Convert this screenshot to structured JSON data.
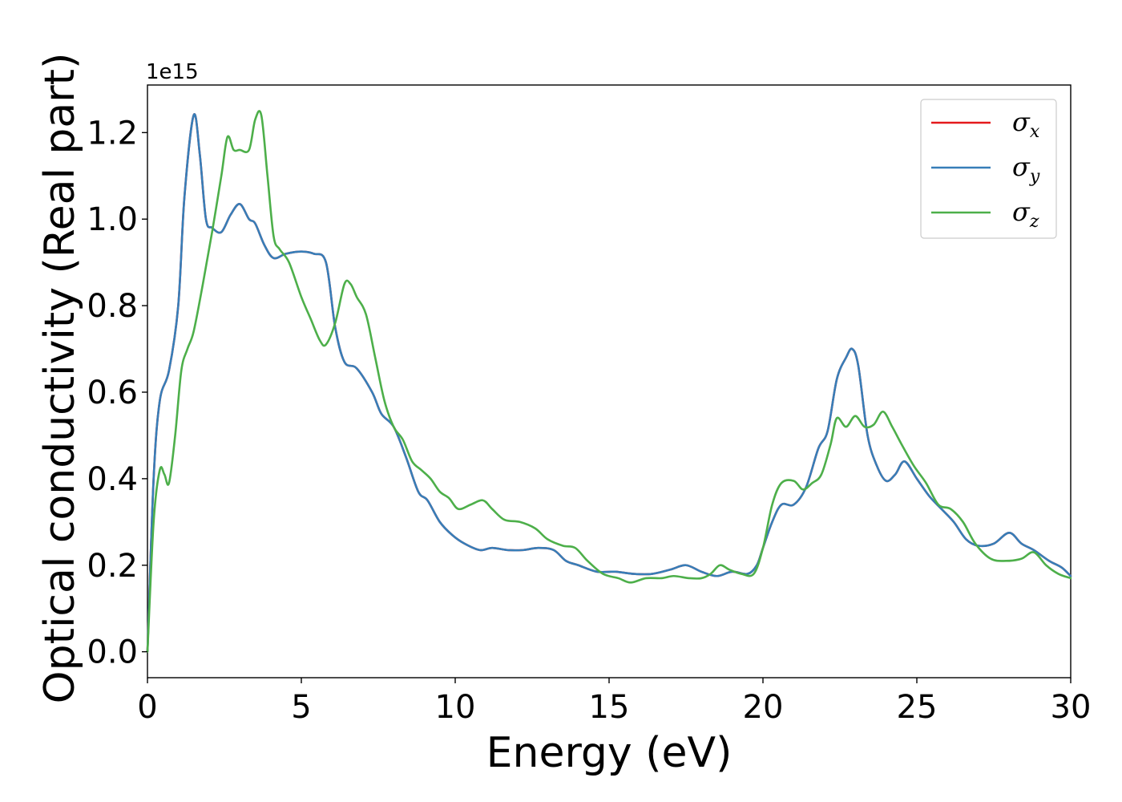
{
  "chart_data": {
    "type": "line",
    "xlabel": "Energy (eV)",
    "ylabel": "Optical conductivity (Real part)",
    "y_offset_label": "1e15",
    "xlim": [
      0,
      30
    ],
    "ylim": [
      -0.06,
      1.31
    ],
    "x_ticks": [
      0,
      5,
      10,
      15,
      20,
      25,
      30
    ],
    "x_tick_labels": [
      "0",
      "5",
      "10",
      "15",
      "20",
      "25",
      "30"
    ],
    "y_ticks": [
      0.0,
      0.2,
      0.4,
      0.6,
      0.8,
      1.0,
      1.2
    ],
    "y_tick_labels": [
      "0.0",
      "0.2",
      "0.4",
      "0.6",
      "0.8",
      "1.0",
      "1.2"
    ],
    "grid": false,
    "legend_position": "top-right",
    "series": [
      {
        "name": "σ_x",
        "legend_main": "σ",
        "legend_sub": "x",
        "color": "#e41a1c",
        "points": [
          [
            0,
            0.0
          ],
          [
            0.2,
            0.4
          ],
          [
            0.4,
            0.58
          ],
          [
            0.7,
            0.65
          ],
          [
            1.0,
            0.8
          ],
          [
            1.2,
            1.05
          ],
          [
            1.5,
            1.24
          ],
          [
            1.7,
            1.15
          ],
          [
            1.9,
            1.0
          ],
          [
            2.1,
            0.98
          ],
          [
            2.4,
            0.97
          ],
          [
            2.7,
            1.01
          ],
          [
            3.0,
            1.035
          ],
          [
            3.3,
            1.0
          ],
          [
            3.5,
            0.99
          ],
          [
            3.8,
            0.94
          ],
          [
            4.1,
            0.91
          ],
          [
            4.5,
            0.92
          ],
          [
            5.0,
            0.925
          ],
          [
            5.4,
            0.92
          ],
          [
            5.8,
            0.9
          ],
          [
            6.1,
            0.75
          ],
          [
            6.4,
            0.67
          ],
          [
            6.8,
            0.655
          ],
          [
            7.3,
            0.6
          ],
          [
            7.6,
            0.55
          ],
          [
            8.0,
            0.52
          ],
          [
            8.4,
            0.45
          ],
          [
            8.8,
            0.37
          ],
          [
            9.1,
            0.35
          ],
          [
            9.5,
            0.3
          ],
          [
            9.9,
            0.27
          ],
          [
            10.3,
            0.25
          ],
          [
            10.8,
            0.235
          ],
          [
            11.2,
            0.24
          ],
          [
            11.7,
            0.235
          ],
          [
            12.2,
            0.235
          ],
          [
            12.7,
            0.24
          ],
          [
            13.2,
            0.235
          ],
          [
            13.6,
            0.21
          ],
          [
            14.0,
            0.2
          ],
          [
            14.6,
            0.185
          ],
          [
            15.2,
            0.185
          ],
          [
            15.8,
            0.18
          ],
          [
            16.4,
            0.18
          ],
          [
            17.0,
            0.19
          ],
          [
            17.5,
            0.2
          ],
          [
            18.0,
            0.185
          ],
          [
            18.5,
            0.175
          ],
          [
            19.0,
            0.185
          ],
          [
            19.5,
            0.18
          ],
          [
            19.8,
            0.2
          ],
          [
            20.0,
            0.24
          ],
          [
            20.3,
            0.3
          ],
          [
            20.6,
            0.34
          ],
          [
            21.0,
            0.34
          ],
          [
            21.4,
            0.38
          ],
          [
            21.8,
            0.47
          ],
          [
            22.1,
            0.51
          ],
          [
            22.4,
            0.63
          ],
          [
            22.7,
            0.68
          ],
          [
            22.9,
            0.7
          ],
          [
            23.1,
            0.66
          ],
          [
            23.4,
            0.5
          ],
          [
            23.7,
            0.43
          ],
          [
            24.0,
            0.395
          ],
          [
            24.3,
            0.41
          ],
          [
            24.6,
            0.44
          ],
          [
            25.0,
            0.4
          ],
          [
            25.4,
            0.36
          ],
          [
            25.8,
            0.33
          ],
          [
            26.2,
            0.3
          ],
          [
            26.6,
            0.26
          ],
          [
            27.0,
            0.245
          ],
          [
            27.5,
            0.25
          ],
          [
            28.0,
            0.275
          ],
          [
            28.4,
            0.25
          ],
          [
            28.8,
            0.235
          ],
          [
            29.3,
            0.21
          ],
          [
            29.7,
            0.195
          ],
          [
            30.0,
            0.175
          ]
        ]
      },
      {
        "name": "σ_y",
        "legend_main": "σ",
        "legend_sub": "y",
        "color": "#377eb8",
        "points": [
          [
            0,
            0.0
          ],
          [
            0.2,
            0.4
          ],
          [
            0.4,
            0.58
          ],
          [
            0.7,
            0.65
          ],
          [
            1.0,
            0.8
          ],
          [
            1.2,
            1.05
          ],
          [
            1.5,
            1.24
          ],
          [
            1.7,
            1.15
          ],
          [
            1.9,
            1.0
          ],
          [
            2.1,
            0.98
          ],
          [
            2.4,
            0.97
          ],
          [
            2.7,
            1.01
          ],
          [
            3.0,
            1.035
          ],
          [
            3.3,
            1.0
          ],
          [
            3.5,
            0.99
          ],
          [
            3.8,
            0.94
          ],
          [
            4.1,
            0.91
          ],
          [
            4.5,
            0.92
          ],
          [
            5.0,
            0.925
          ],
          [
            5.4,
            0.92
          ],
          [
            5.8,
            0.9
          ],
          [
            6.1,
            0.75
          ],
          [
            6.4,
            0.67
          ],
          [
            6.8,
            0.655
          ],
          [
            7.3,
            0.6
          ],
          [
            7.6,
            0.55
          ],
          [
            8.0,
            0.52
          ],
          [
            8.4,
            0.45
          ],
          [
            8.8,
            0.37
          ],
          [
            9.1,
            0.35
          ],
          [
            9.5,
            0.3
          ],
          [
            9.9,
            0.27
          ],
          [
            10.3,
            0.25
          ],
          [
            10.8,
            0.235
          ],
          [
            11.2,
            0.24
          ],
          [
            11.7,
            0.235
          ],
          [
            12.2,
            0.235
          ],
          [
            12.7,
            0.24
          ],
          [
            13.2,
            0.235
          ],
          [
            13.6,
            0.21
          ],
          [
            14.0,
            0.2
          ],
          [
            14.6,
            0.185
          ],
          [
            15.2,
            0.185
          ],
          [
            15.8,
            0.18
          ],
          [
            16.4,
            0.18
          ],
          [
            17.0,
            0.19
          ],
          [
            17.5,
            0.2
          ],
          [
            18.0,
            0.185
          ],
          [
            18.5,
            0.175
          ],
          [
            19.0,
            0.185
          ],
          [
            19.5,
            0.18
          ],
          [
            19.8,
            0.2
          ],
          [
            20.0,
            0.24
          ],
          [
            20.3,
            0.3
          ],
          [
            20.6,
            0.34
          ],
          [
            21.0,
            0.34
          ],
          [
            21.4,
            0.38
          ],
          [
            21.8,
            0.47
          ],
          [
            22.1,
            0.51
          ],
          [
            22.4,
            0.63
          ],
          [
            22.7,
            0.68
          ],
          [
            22.9,
            0.7
          ],
          [
            23.1,
            0.66
          ],
          [
            23.4,
            0.5
          ],
          [
            23.7,
            0.43
          ],
          [
            24.0,
            0.395
          ],
          [
            24.3,
            0.41
          ],
          [
            24.6,
            0.44
          ],
          [
            25.0,
            0.4
          ],
          [
            25.4,
            0.36
          ],
          [
            25.8,
            0.33
          ],
          [
            26.2,
            0.3
          ],
          [
            26.6,
            0.26
          ],
          [
            27.0,
            0.245
          ],
          [
            27.5,
            0.25
          ],
          [
            28.0,
            0.275
          ],
          [
            28.4,
            0.25
          ],
          [
            28.8,
            0.235
          ],
          [
            29.3,
            0.21
          ],
          [
            29.7,
            0.195
          ],
          [
            30.0,
            0.175
          ]
        ]
      },
      {
        "name": "σ_z",
        "legend_main": "σ",
        "legend_sub": "z",
        "color": "#4daf4a",
        "points": [
          [
            0,
            0.0
          ],
          [
            0.2,
            0.3
          ],
          [
            0.4,
            0.42
          ],
          [
            0.55,
            0.41
          ],
          [
            0.7,
            0.39
          ],
          [
            0.9,
            0.5
          ],
          [
            1.1,
            0.65
          ],
          [
            1.3,
            0.7
          ],
          [
            1.5,
            0.74
          ],
          [
            1.8,
            0.85
          ],
          [
            2.1,
            0.97
          ],
          [
            2.4,
            1.1
          ],
          [
            2.6,
            1.19
          ],
          [
            2.8,
            1.16
          ],
          [
            3.0,
            1.16
          ],
          [
            3.3,
            1.16
          ],
          [
            3.5,
            1.23
          ],
          [
            3.7,
            1.24
          ],
          [
            3.9,
            1.1
          ],
          [
            4.1,
            0.96
          ],
          [
            4.3,
            0.93
          ],
          [
            4.6,
            0.9
          ],
          [
            5.0,
            0.82
          ],
          [
            5.3,
            0.77
          ],
          [
            5.6,
            0.72
          ],
          [
            5.8,
            0.71
          ],
          [
            6.1,
            0.76
          ],
          [
            6.4,
            0.85
          ],
          [
            6.6,
            0.85
          ],
          [
            6.8,
            0.82
          ],
          [
            7.1,
            0.78
          ],
          [
            7.4,
            0.68
          ],
          [
            7.7,
            0.58
          ],
          [
            8.0,
            0.52
          ],
          [
            8.3,
            0.49
          ],
          [
            8.6,
            0.44
          ],
          [
            8.9,
            0.42
          ],
          [
            9.2,
            0.4
          ],
          [
            9.5,
            0.37
          ],
          [
            9.8,
            0.355
          ],
          [
            10.1,
            0.33
          ],
          [
            10.5,
            0.34
          ],
          [
            10.9,
            0.35
          ],
          [
            11.2,
            0.33
          ],
          [
            11.6,
            0.305
          ],
          [
            12.1,
            0.3
          ],
          [
            12.6,
            0.285
          ],
          [
            13.0,
            0.26
          ],
          [
            13.5,
            0.245
          ],
          [
            13.9,
            0.24
          ],
          [
            14.3,
            0.21
          ],
          [
            14.8,
            0.18
          ],
          [
            15.3,
            0.17
          ],
          [
            15.7,
            0.16
          ],
          [
            16.2,
            0.17
          ],
          [
            16.7,
            0.17
          ],
          [
            17.1,
            0.175
          ],
          [
            17.6,
            0.17
          ],
          [
            18.0,
            0.17
          ],
          [
            18.3,
            0.18
          ],
          [
            18.6,
            0.2
          ],
          [
            18.9,
            0.19
          ],
          [
            19.3,
            0.18
          ],
          [
            19.7,
            0.18
          ],
          [
            20.0,
            0.24
          ],
          [
            20.3,
            0.34
          ],
          [
            20.6,
            0.39
          ],
          [
            21.0,
            0.395
          ],
          [
            21.3,
            0.375
          ],
          [
            21.6,
            0.39
          ],
          [
            21.9,
            0.41
          ],
          [
            22.2,
            0.48
          ],
          [
            22.4,
            0.54
          ],
          [
            22.7,
            0.52
          ],
          [
            23.0,
            0.545
          ],
          [
            23.3,
            0.52
          ],
          [
            23.6,
            0.525
          ],
          [
            23.9,
            0.555
          ],
          [
            24.2,
            0.52
          ],
          [
            24.5,
            0.48
          ],
          [
            24.9,
            0.43
          ],
          [
            25.3,
            0.39
          ],
          [
            25.7,
            0.34
          ],
          [
            26.1,
            0.33
          ],
          [
            26.5,
            0.3
          ],
          [
            26.9,
            0.25
          ],
          [
            27.4,
            0.215
          ],
          [
            27.9,
            0.21
          ],
          [
            28.4,
            0.215
          ],
          [
            28.8,
            0.23
          ],
          [
            29.2,
            0.2
          ],
          [
            29.6,
            0.18
          ],
          [
            30.0,
            0.17
          ]
        ]
      }
    ]
  }
}
